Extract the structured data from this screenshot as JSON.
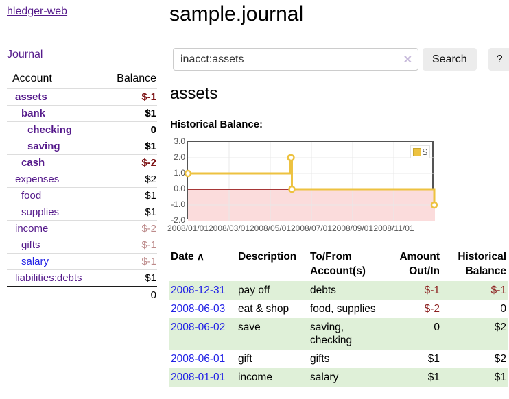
{
  "sidebar": {
    "app_title": "hledger-web",
    "nav": {
      "journal_label": "Journal"
    },
    "accounts_table": {
      "headers": {
        "account": "Account",
        "balance": "Balance"
      },
      "rows": [
        {
          "name": "assets",
          "balance": "$-1"
        },
        {
          "name": "bank",
          "balance": "$1"
        },
        {
          "name": "checking",
          "balance": "0"
        },
        {
          "name": "saving",
          "balance": "$1"
        },
        {
          "name": "cash",
          "balance": "$-2"
        },
        {
          "name": "expenses",
          "balance": "$2"
        },
        {
          "name": "food",
          "balance": "$1"
        },
        {
          "name": "supplies",
          "balance": "$1"
        },
        {
          "name": "income",
          "balance": "$-2"
        },
        {
          "name": "gifts",
          "balance": "$-1"
        },
        {
          "name": "salary",
          "balance": "$-1"
        },
        {
          "name": "liabilities:debts",
          "balance": "$1"
        }
      ],
      "total": "0"
    }
  },
  "header": {
    "title": "sample.journal"
  },
  "search": {
    "value": "inacct:assets",
    "clear_icon": "✕",
    "button_label": "Search",
    "help_label": "?"
  },
  "account_page": {
    "heading": "assets",
    "chart_label": "Historical Balance:"
  },
  "chart_data": {
    "type": "line",
    "step": true,
    "title": "Historical Balance:",
    "series": [
      {
        "name": "$",
        "color": "#edc240",
        "points": [
          [
            "2008-01-01",
            1
          ],
          [
            "2008-06-01",
            2
          ],
          [
            "2008-06-02",
            2
          ],
          [
            "2008-06-03",
            0
          ],
          [
            "2008-12-31",
            -1
          ]
        ]
      }
    ],
    "ylim": [
      -2,
      3
    ],
    "y_ticks": [
      "3.0",
      "2.0",
      "1.0",
      "0.0",
      "-1.0",
      "-2.0"
    ],
    "x_ticks": [
      "2008/01/01",
      "2008/03/01",
      "2008/05/01",
      "2008/07/01",
      "2008/09/01",
      "2008/11/01"
    ],
    "x_start": "2008-01-01",
    "x_end": "2009-01-01",
    "grid": true,
    "grid_color": "#e8e8e8",
    "below_zero_fill": "#fbdcdc",
    "zero_line_color": "#8b0000",
    "legend_position": "top-right"
  },
  "register": {
    "sort_icon": "∧",
    "headers": [
      {
        "l1": "Date",
        "l2": ""
      },
      {
        "l1": "Description",
        "l2": ""
      },
      {
        "l1": "To/From",
        "l2": "Account(s)"
      },
      {
        "l1": "Amount",
        "l2": "Out/In"
      },
      {
        "l1": "Historical",
        "l2": "Balance"
      }
    ],
    "rows": [
      {
        "date": "2008-12-31",
        "description": "pay off",
        "accounts": "debts",
        "amount": "$-1",
        "balance": "$-1"
      },
      {
        "date": "2008-06-03",
        "description": "eat & shop",
        "accounts": "food, supplies",
        "amount": "$-2",
        "balance": "0"
      },
      {
        "date": "2008-06-02",
        "description": "save",
        "accounts": "saving, checking",
        "amount": "0",
        "balance": "$2"
      },
      {
        "date": "2008-06-01",
        "description": "gift",
        "accounts": "gifts",
        "amount": "$1",
        "balance": "$2"
      },
      {
        "date": "2008-01-01",
        "description": "income",
        "accounts": "salary",
        "amount": "$1",
        "balance": "$1"
      }
    ]
  }
}
